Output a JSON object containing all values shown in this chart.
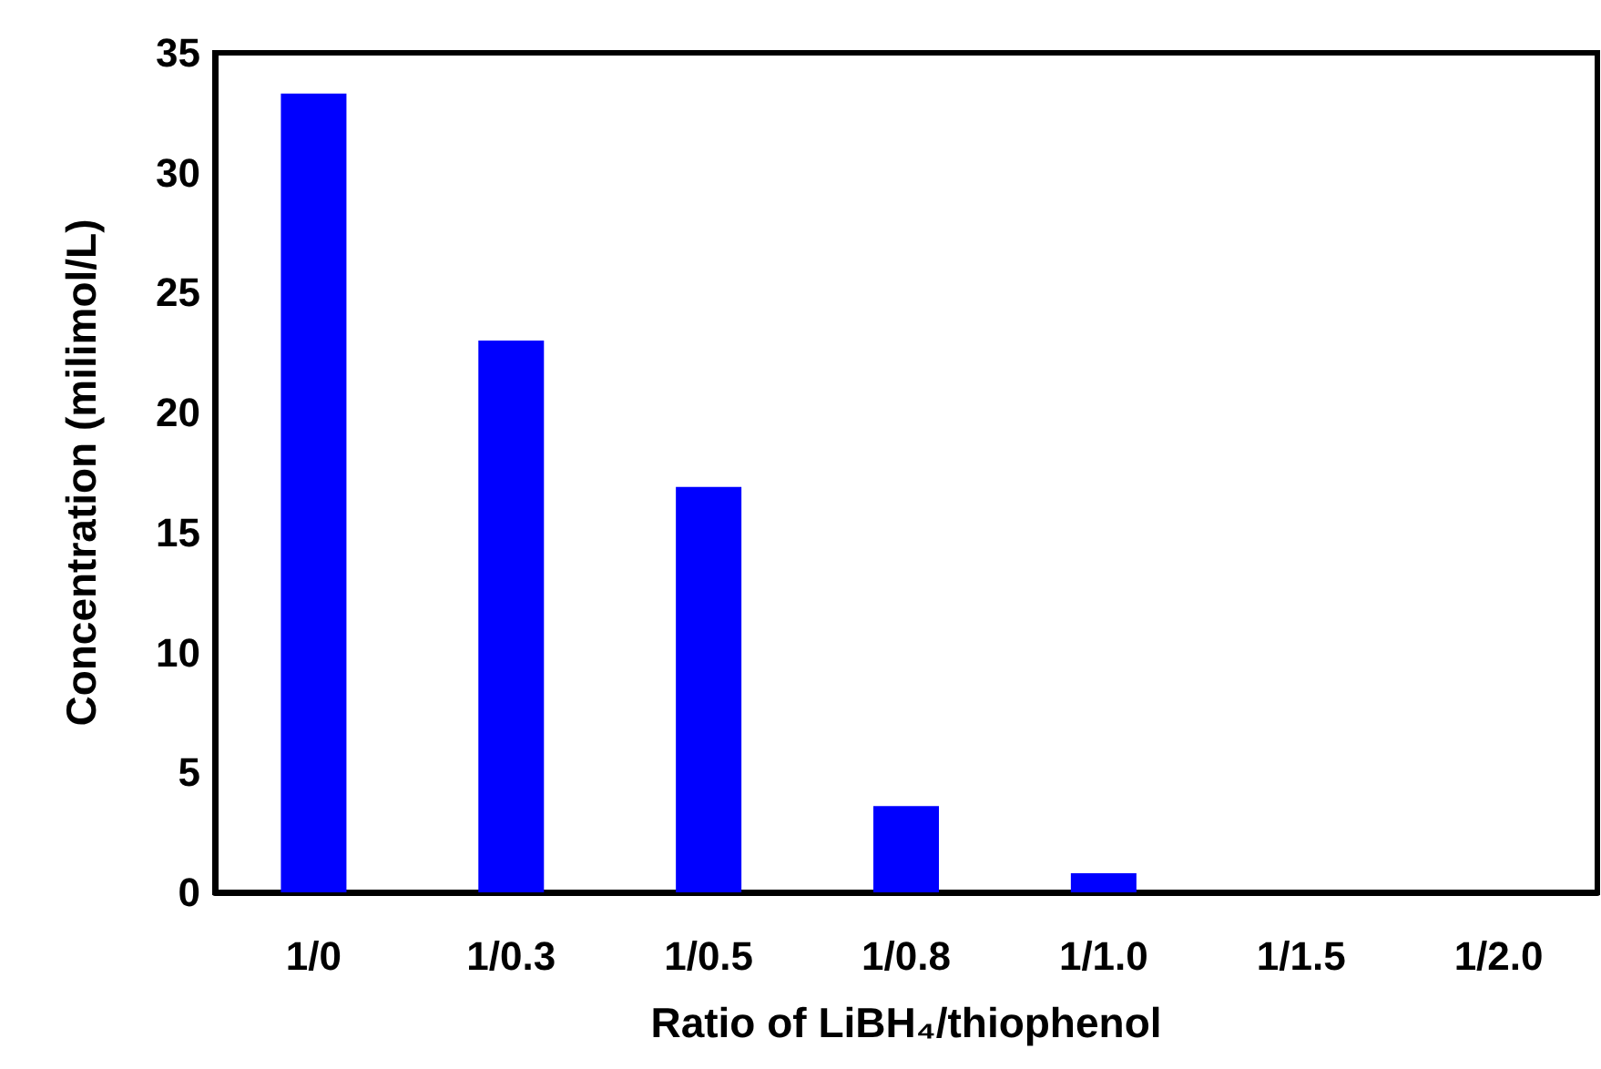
{
  "chart_data": {
    "type": "bar",
    "xlabel": "Ratio of LiBH₄/thiophenol",
    "ylabel": "Concentration (milimol/L)",
    "categories": [
      "1/0",
      "1/0.3",
      "1/0.5",
      "1/0.8",
      "1/1.0",
      "1/1.5",
      "1/2.0"
    ],
    "values": [
      33.3,
      23.0,
      16.9,
      3.6,
      0.8,
      0,
      0
    ],
    "color": "#0000ff",
    "ylim": [
      0,
      35
    ],
    "yticks": [
      0,
      5,
      10,
      15,
      20,
      25,
      30,
      35
    ],
    "grid": false
  }
}
